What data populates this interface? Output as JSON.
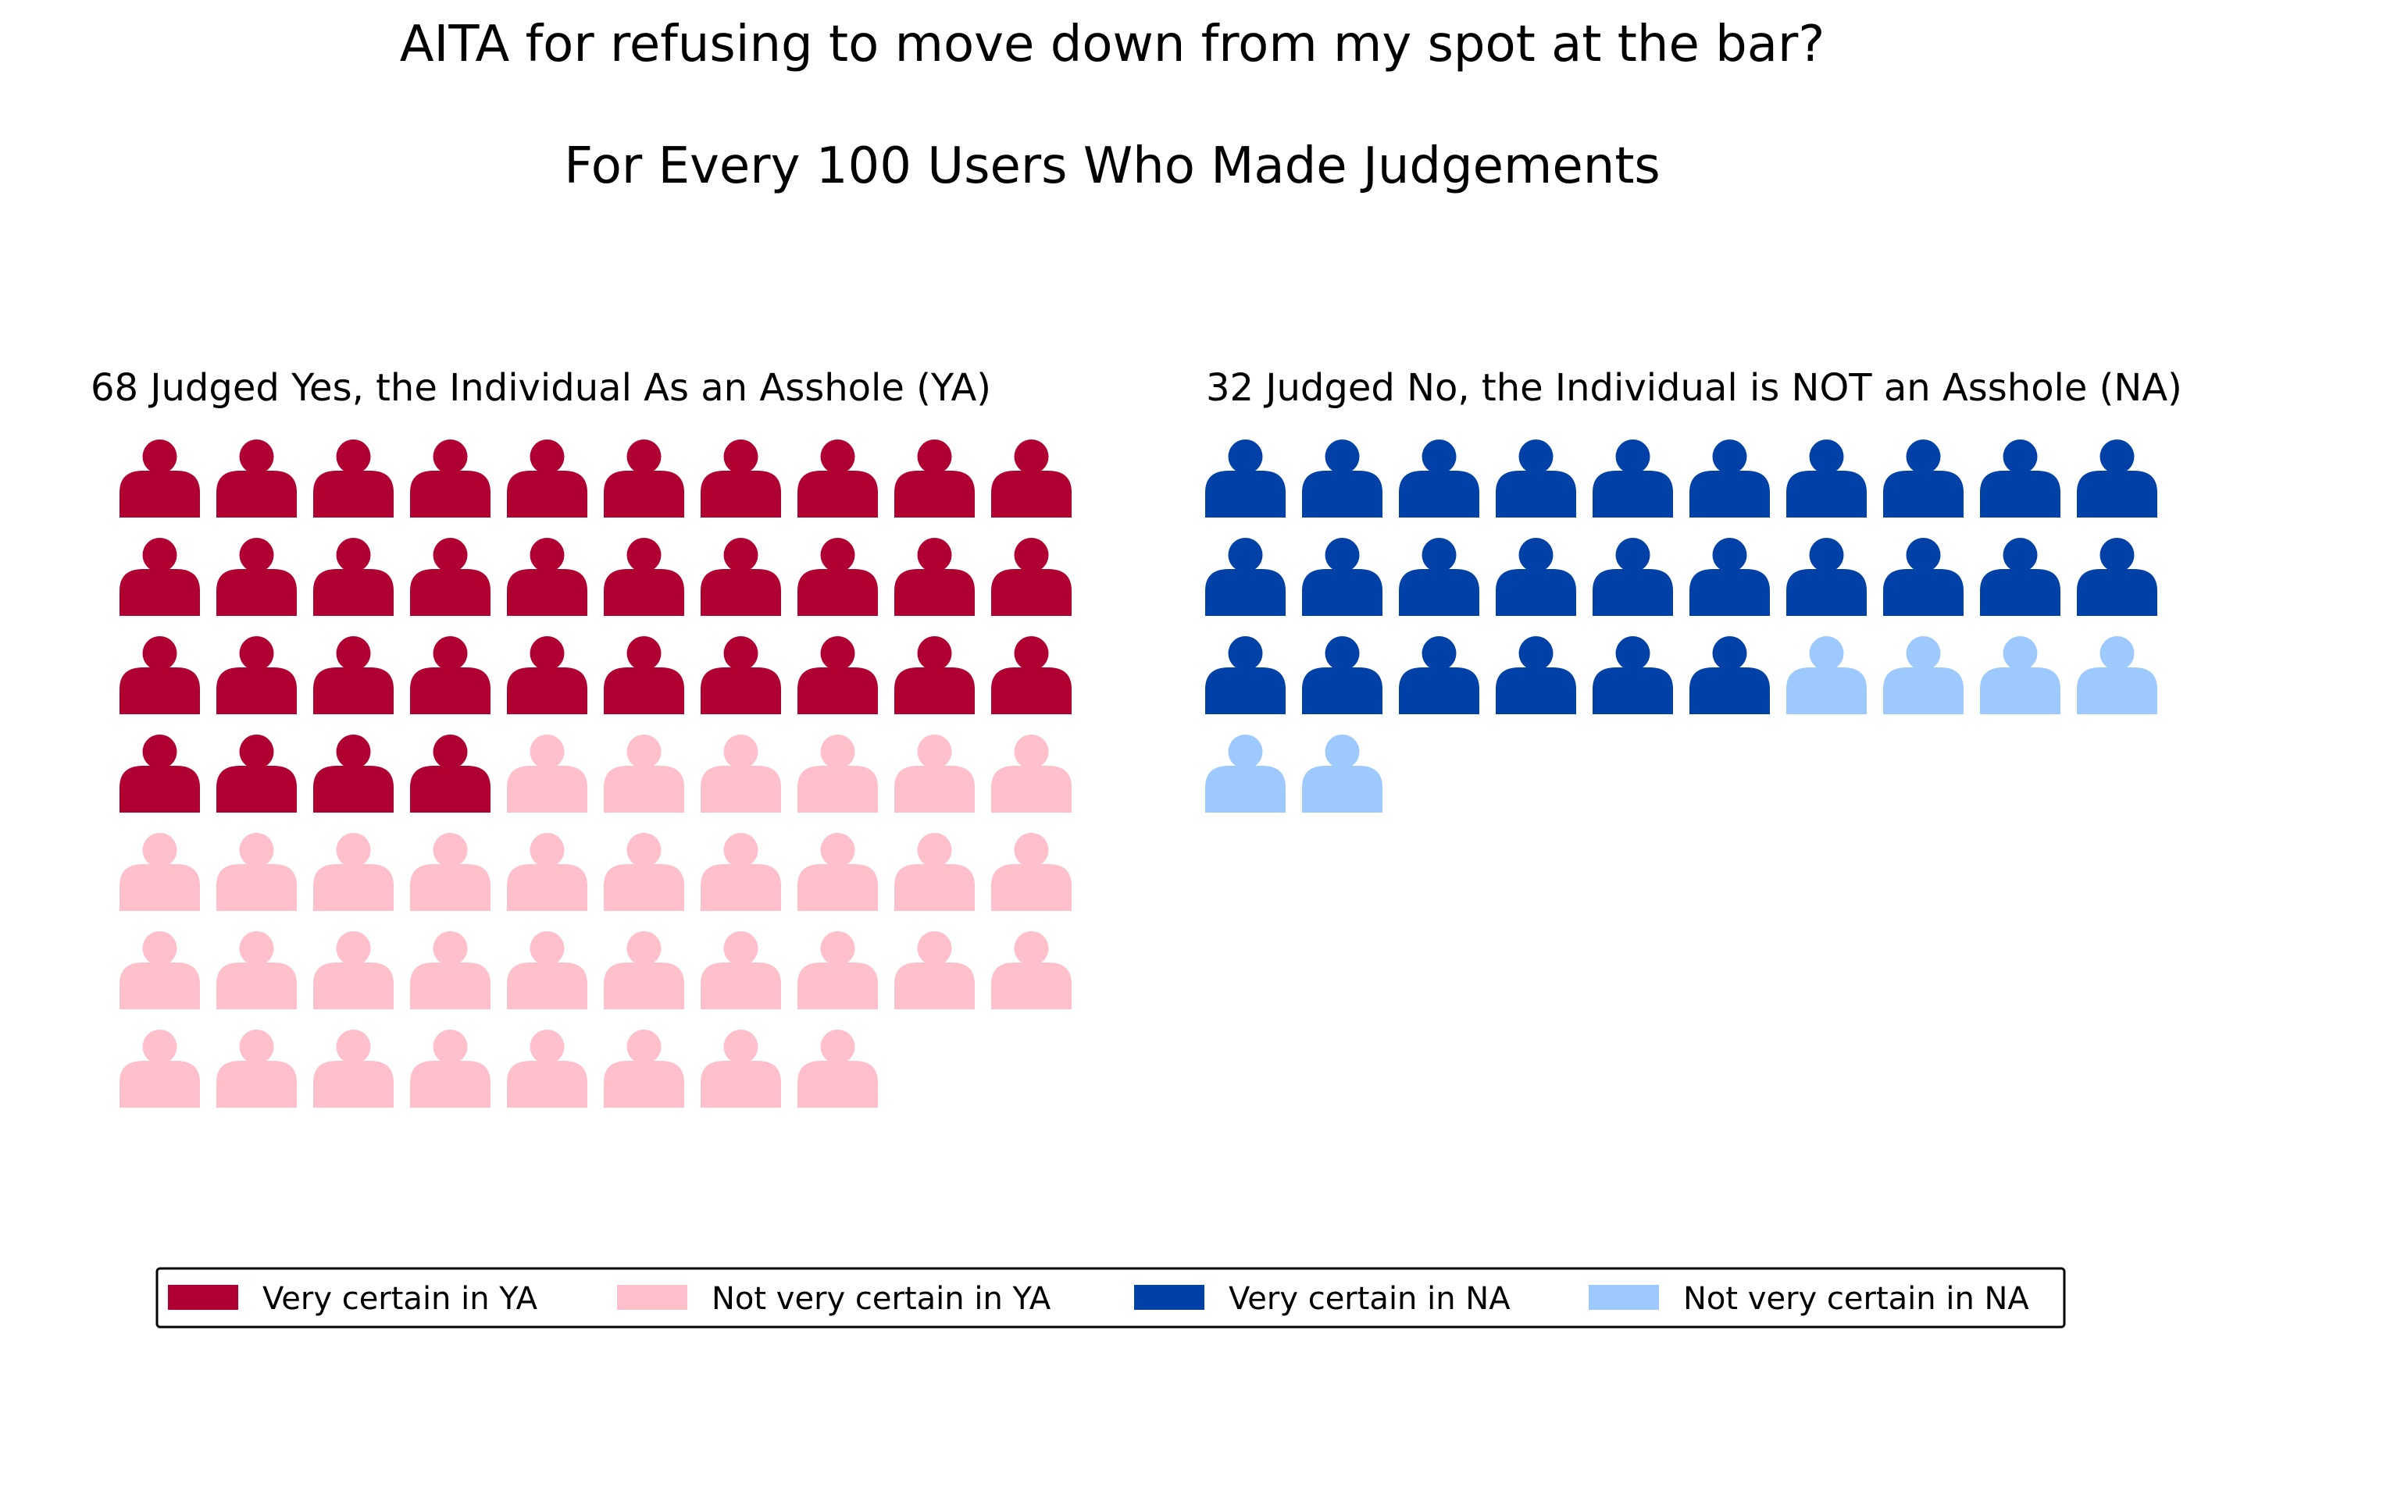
{
  "chart_data": {
    "type": "pictograph",
    "title": "AITA for refusing to move down from my spot at the bar?",
    "subtitle": "For Every 100 Users Who Made Judgements",
    "icon": "person-icon",
    "panels": [
      {
        "label": "68 Judged Yes, the Individual As an Asshole (YA)",
        "total": 68,
        "columns": 10,
        "groups": [
          {
            "name": "Very certain in YA",
            "count": 34,
            "color": "#b00032"
          },
          {
            "name": "Not very certain in YA",
            "count": 34,
            "color": "#ffc0cb"
          }
        ]
      },
      {
        "label": "32 Judged No, the Individual is NOT an Asshole (NA)",
        "total": 32,
        "columns": 10,
        "groups": [
          {
            "name": "Very certain in NA",
            "count": 26,
            "color": "#0041a8"
          },
          {
            "name": "Not very certain in NA",
            "count": 6,
            "color": "#9ec9ff"
          }
        ]
      }
    ],
    "legend": {
      "placement": "bottom",
      "entries": [
        {
          "label": "Very certain in YA",
          "color": "#b00032"
        },
        {
          "label": "Not very certain in YA",
          "color": "#ffc0cb"
        },
        {
          "label": "Very certain in NA",
          "color": "#0041a8"
        },
        {
          "label": "Not very certain in NA",
          "color": "#9ec9ff"
        }
      ]
    }
  }
}
